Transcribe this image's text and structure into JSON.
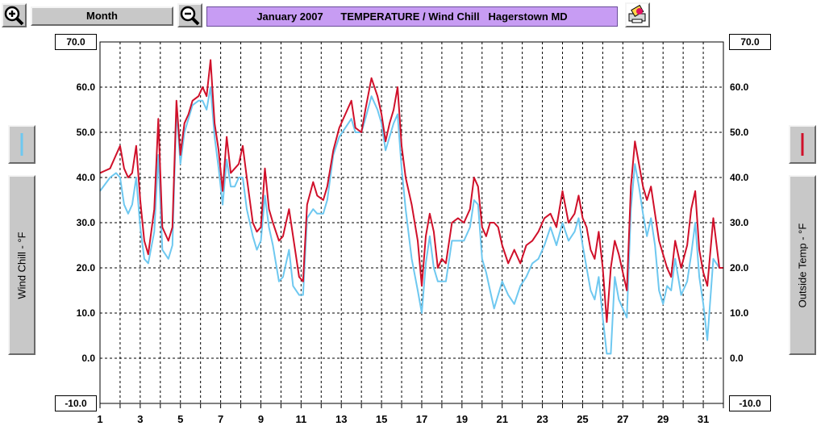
{
  "toolbar": {
    "zoom_in_icon": "zoom-in-magnifier",
    "zoom_out_icon": "zoom-out-magnifier",
    "range_label": "Month",
    "print_icon": "printer-icon"
  },
  "header": {
    "title": "January 2007      TEMPERATURE / Wind Chill   Hagerstown MD",
    "title_bg": "#c79cf3"
  },
  "axes": {
    "left_top": "70.0",
    "left_bottom": "-10.0",
    "right_top": "70.0",
    "right_bottom": "-10.0",
    "left_label": "Wind Chill - °F",
    "right_label": "Outside Temp - °F"
  },
  "chart_data": {
    "type": "line",
    "title": "January 2007      TEMPERATURE / Wind Chill   Hagerstown MD",
    "xlabel": "",
    "ylabel": "Wind Chill - °F",
    "y2label": "Outside Temp - °F",
    "ylim": [
      -10,
      70
    ],
    "xlim": [
      1,
      32
    ],
    "grid": true,
    "y_ticks": [
      70,
      60,
      50,
      40,
      30,
      20,
      10,
      0,
      -10
    ],
    "y_tick_labels": [
      "70.0",
      "60.0",
      "50.0",
      "40.0",
      "30.0",
      "20.0",
      "10.0",
      "0.0",
      "-10.0"
    ],
    "x_tick_labels": [
      "1",
      "3",
      "5",
      "7",
      "9",
      "11",
      "13",
      "15",
      "17",
      "19",
      "21",
      "23",
      "25",
      "27",
      "29",
      "31"
    ],
    "series": [
      {
        "name": "Outside Temp",
        "color": "#d0102a",
        "x": [
          1,
          1.5,
          1.8,
          2.0,
          2.2,
          2.4,
          2.6,
          2.8,
          3.0,
          3.2,
          3.4,
          3.7,
          3.9,
          4.1,
          4.4,
          4.6,
          4.8,
          5.0,
          5.2,
          5.4,
          5.6,
          5.9,
          6.1,
          6.3,
          6.5,
          6.7,
          6.9,
          7.1,
          7.3,
          7.5,
          7.7,
          7.9,
          8.1,
          8.3,
          8.6,
          8.8,
          9.0,
          9.2,
          9.4,
          9.6,
          9.9,
          10.1,
          10.4,
          10.6,
          10.9,
          11.1,
          11.3,
          11.6,
          11.8,
          12.1,
          12.3,
          12.6,
          12.9,
          13.2,
          13.5,
          13.7,
          14.0,
          14.2,
          14.5,
          14.8,
          15.0,
          15.2,
          15.4,
          15.6,
          15.8,
          16.0,
          16.2,
          16.5,
          16.8,
          17.0,
          17.2,
          17.4,
          17.6,
          17.8,
          18.0,
          18.2,
          18.5,
          18.8,
          19.1,
          19.4,
          19.6,
          19.8,
          20.0,
          20.2,
          20.4,
          20.6,
          20.8,
          21.0,
          21.3,
          21.6,
          21.9,
          22.2,
          22.5,
          22.8,
          23.1,
          23.4,
          23.7,
          24.0,
          24.3,
          24.6,
          24.8,
          25.0,
          25.2,
          25.4,
          25.6,
          25.8,
          26.0,
          26.2,
          26.4,
          26.6,
          26.8,
          27.0,
          27.2,
          27.4,
          27.6,
          27.8,
          28.0,
          28.2,
          28.4,
          28.6,
          28.8,
          29.0,
          29.2,
          29.4,
          29.6,
          29.9,
          30.2,
          30.4,
          30.6,
          30.8,
          31.0,
          31.2,
          31.5,
          31.8,
          32.0
        ],
        "values": [
          41,
          42,
          45,
          47,
          42,
          40,
          41,
          47,
          35,
          26,
          23,
          33,
          53,
          29,
          26,
          29,
          57,
          45,
          52,
          54,
          57,
          58,
          60,
          58,
          66,
          52,
          46,
          37,
          49,
          41,
          42,
          43,
          47,
          40,
          30,
          28,
          29,
          42,
          33,
          30,
          26,
          27,
          33,
          27,
          18,
          17,
          34,
          39,
          36,
          35,
          38,
          46,
          51,
          54,
          57,
          51,
          50,
          55,
          62,
          58,
          54,
          48,
          52,
          55,
          60,
          47,
          40,
          34,
          26,
          16,
          27,
          32,
          28,
          20,
          22,
          21,
          30,
          31,
          30,
          33,
          40,
          38,
          29,
          27,
          30,
          30,
          29,
          25,
          21,
          24,
          21,
          25,
          26,
          28,
          31,
          32,
          29,
          37,
          30,
          32,
          36,
          31,
          29,
          24,
          22,
          28,
          20,
          8,
          20,
          26,
          23,
          19,
          15,
          38,
          48,
          43,
          38,
          35,
          38,
          32,
          26,
          23,
          20,
          18,
          26,
          20,
          25,
          33,
          37,
          24,
          19,
          16,
          31,
          20,
          20
        ]
      },
      {
        "name": "Wind Chill",
        "color": "#6ec8f0",
        "x": [
          1,
          1.5,
          1.8,
          2.0,
          2.2,
          2.4,
          2.6,
          2.8,
          3.0,
          3.2,
          3.4,
          3.7,
          3.9,
          4.1,
          4.4,
          4.6,
          4.8,
          5.0,
          5.2,
          5.4,
          5.6,
          5.9,
          6.1,
          6.3,
          6.5,
          6.7,
          6.9,
          7.1,
          7.3,
          7.5,
          7.7,
          7.9,
          8.1,
          8.3,
          8.6,
          8.8,
          9.0,
          9.2,
          9.4,
          9.6,
          9.9,
          10.1,
          10.4,
          10.6,
          10.9,
          11.1,
          11.3,
          11.6,
          11.8,
          12.1,
          12.3,
          12.6,
          12.9,
          13.2,
          13.5,
          13.7,
          14.0,
          14.2,
          14.5,
          14.8,
          15.0,
          15.2,
          15.4,
          15.6,
          15.8,
          16.0,
          16.2,
          16.5,
          16.8,
          17.0,
          17.2,
          17.4,
          17.6,
          17.8,
          18.0,
          18.2,
          18.5,
          18.8,
          19.1,
          19.4,
          19.6,
          19.8,
          20.0,
          20.2,
          20.4,
          20.6,
          20.8,
          21.0,
          21.3,
          21.6,
          21.9,
          22.2,
          22.5,
          22.8,
          23.1,
          23.4,
          23.7,
          24.0,
          24.3,
          24.6,
          24.8,
          25.0,
          25.2,
          25.4,
          25.6,
          25.8,
          26.0,
          26.2,
          26.4,
          26.6,
          26.8,
          27.0,
          27.2,
          27.4,
          27.6,
          27.8,
          28.0,
          28.2,
          28.4,
          28.6,
          28.8,
          29.0,
          29.2,
          29.4,
          29.6,
          29.9,
          30.2,
          30.4,
          30.6,
          30.8,
          31.0,
          31.2,
          31.5,
          31.8,
          32.0
        ],
        "values": [
          37,
          40,
          41,
          40,
          34,
          32,
          34,
          40,
          29,
          22,
          21,
          28,
          45,
          24,
          22,
          25,
          55,
          43,
          50,
          53,
          56,
          57,
          57,
          55,
          60,
          49,
          42,
          34,
          44,
          38,
          38,
          40,
          40,
          33,
          27,
          24,
          26,
          36,
          29,
          25,
          17,
          18,
          24,
          16,
          14,
          14,
          31,
          33,
          32,
          32,
          35,
          45,
          49,
          51,
          53,
          50,
          50,
          53,
          58,
          55,
          52,
          46,
          49,
          52,
          54,
          42,
          33,
          22,
          15,
          10,
          21,
          27,
          20,
          17,
          17,
          17,
          26,
          26,
          26,
          29,
          35,
          34,
          22,
          19,
          15,
          11,
          14,
          17,
          14,
          12,
          16,
          18,
          21,
          22,
          25,
          29,
          25,
          30,
          26,
          28,
          31,
          25,
          20,
          15,
          13,
          18,
          9,
          1,
          1,
          18,
          13,
          11,
          9,
          33,
          43,
          38,
          32,
          27,
          31,
          25,
          15,
          12,
          16,
          15,
          22,
          14,
          17,
          23,
          30,
          18,
          12,
          4,
          22,
          20,
          20
        ]
      }
    ]
  }
}
